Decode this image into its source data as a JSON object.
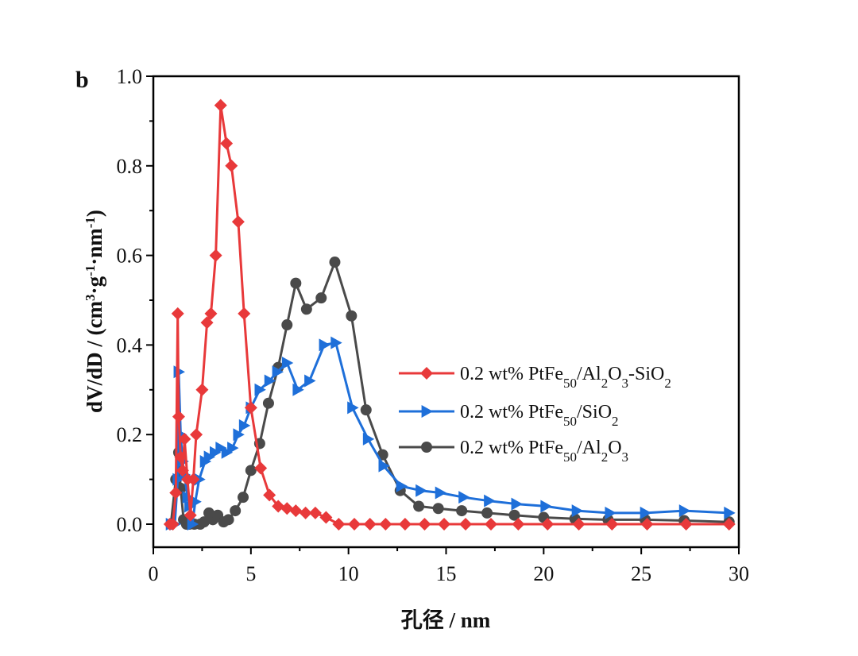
{
  "chart_data": {
    "type": "line",
    "panel_label": "b",
    "title": "",
    "xlabel": "孔径 / nm",
    "ylabel": "dV/dD / (cm3·g-1·nm-1)",
    "ylabel_parts": {
      "main": "dV/dD / (cm",
      "sup1": "3",
      "mid1": "·g",
      "sup2": "-1",
      "mid2": "·nm",
      "sup3": "-1",
      "end": ")"
    },
    "xlim": [
      0,
      30
    ],
    "ylim": [
      -0.05,
      1.0
    ],
    "xticks": [
      0,
      5,
      10,
      15,
      20,
      25,
      30
    ],
    "xtick_labels": [
      "0",
      "5",
      "10",
      "15",
      "20",
      "25",
      "30"
    ],
    "yticks": [
      0.0,
      0.2,
      0.4,
      0.6,
      0.8,
      1.0
    ],
    "ytick_labels": [
      "0.0",
      "0.2",
      "0.4",
      "0.6",
      "0.8",
      "1.0"
    ],
    "grid": false,
    "legend_position": "center-right",
    "series": [
      {
        "name": "0.2 wt% PtFe50/Al2O3-SiO2",
        "legend": {
          "pre": "0.2 wt% PtFe",
          "sub1": "50",
          "mid1": "/Al",
          "sub2": "2",
          "mid2": "O",
          "sub3": "3",
          "mid3": "-SiO",
          "sub4": "2"
        },
        "color": "#e8393a",
        "marker": "diamond",
        "x": [
          0.85,
          1.0,
          1.15,
          1.25,
          1.3,
          1.4,
          1.5,
          1.6,
          1.75,
          1.9,
          2.05,
          2.2,
          2.5,
          2.75,
          2.95,
          3.2,
          3.45,
          3.75,
          4.0,
          4.35,
          4.65,
          5.0,
          5.5,
          5.95,
          6.4,
          6.85,
          7.3,
          7.8,
          8.3,
          8.85,
          9.5,
          10.3,
          11.1,
          11.9,
          12.9,
          13.9,
          14.9,
          16.0,
          17.3,
          18.7,
          20.2,
          21.8,
          23.5,
          25.3,
          27.3,
          29.5
        ],
        "y": [
          0.0,
          0.0,
          0.07,
          0.47,
          0.24,
          0.15,
          0.12,
          0.19,
          0.1,
          0.02,
          0.1,
          0.2,
          0.3,
          0.45,
          0.47,
          0.6,
          0.935,
          0.85,
          0.8,
          0.675,
          0.47,
          0.26,
          0.125,
          0.065,
          0.04,
          0.035,
          0.03,
          0.025,
          0.025,
          0.015,
          0.0,
          0.0,
          0.0,
          0.0,
          0.0,
          0.0,
          0.0,
          0.0,
          0.0,
          0.0,
          0.0,
          0.0,
          0.0,
          0.0,
          0.0,
          0.0
        ]
      },
      {
        "name": "0.2 wt% PtFe50/SiO2",
        "legend": {
          "pre": "0.2 wt% PtFe",
          "sub1": "50",
          "mid1": "/SiO",
          "sub2": "2"
        },
        "color": "#1e6fd9",
        "marker": "triangle-right",
        "x": [
          0.9,
          1.1,
          1.25,
          1.3,
          1.4,
          1.5,
          1.6,
          1.75,
          1.85,
          2.0,
          2.15,
          2.35,
          2.65,
          2.85,
          3.15,
          3.45,
          3.75,
          4.05,
          4.35,
          4.65,
          5.0,
          5.45,
          5.95,
          6.35,
          6.85,
          7.4,
          8.0,
          8.75,
          9.35,
          10.2,
          11.0,
          11.8,
          12.7,
          13.7,
          14.7,
          15.9,
          17.2,
          18.6,
          20.1,
          21.7,
          23.4,
          25.2,
          27.2,
          29.5
        ],
        "y": [
          0.0,
          0.0,
          0.1,
          0.34,
          0.2,
          0.14,
          0.11,
          0.06,
          0.04,
          0.0,
          0.05,
          0.1,
          0.14,
          0.15,
          0.16,
          0.17,
          0.16,
          0.17,
          0.2,
          0.22,
          0.26,
          0.3,
          0.32,
          0.34,
          0.36,
          0.3,
          0.32,
          0.4,
          0.405,
          0.26,
          0.19,
          0.13,
          0.085,
          0.075,
          0.07,
          0.06,
          0.052,
          0.045,
          0.04,
          0.03,
          0.025,
          0.025,
          0.03,
          0.025
        ]
      },
      {
        "name": "0.2 wt% PtFe50/Al2O3",
        "legend": {
          "pre": "0.2 wt% PtFe",
          "sub1": "50",
          "mid1": "/Al",
          "sub2": "2",
          "mid2": "O",
          "sub3": "3"
        },
        "color": "#4a4a4a",
        "marker": "circle",
        "x": [
          0.9,
          1.15,
          1.3,
          1.4,
          1.55,
          1.7,
          1.85,
          2.1,
          2.4,
          2.6,
          2.85,
          3.05,
          3.3,
          3.6,
          3.85,
          4.2,
          4.6,
          5.0,
          5.45,
          5.9,
          6.4,
          6.85,
          7.3,
          7.85,
          8.6,
          9.3,
          10.15,
          10.9,
          11.75,
          12.65,
          13.6,
          14.6,
          15.8,
          17.1,
          18.5,
          20.0,
          21.6,
          23.3,
          25.2,
          27.2,
          29.5
        ],
        "y": [
          0.0,
          0.1,
          0.16,
          0.08,
          0.01,
          0.0,
          0.0,
          0.0,
          0.0,
          0.005,
          0.025,
          0.01,
          0.02,
          0.005,
          0.01,
          0.03,
          0.06,
          0.12,
          0.18,
          0.27,
          0.35,
          0.445,
          0.538,
          0.48,
          0.505,
          0.585,
          0.465,
          0.255,
          0.155,
          0.075,
          0.04,
          0.035,
          0.03,
          0.025,
          0.02,
          0.015,
          0.012,
          0.01,
          0.01,
          0.008,
          0.005
        ]
      }
    ]
  }
}
